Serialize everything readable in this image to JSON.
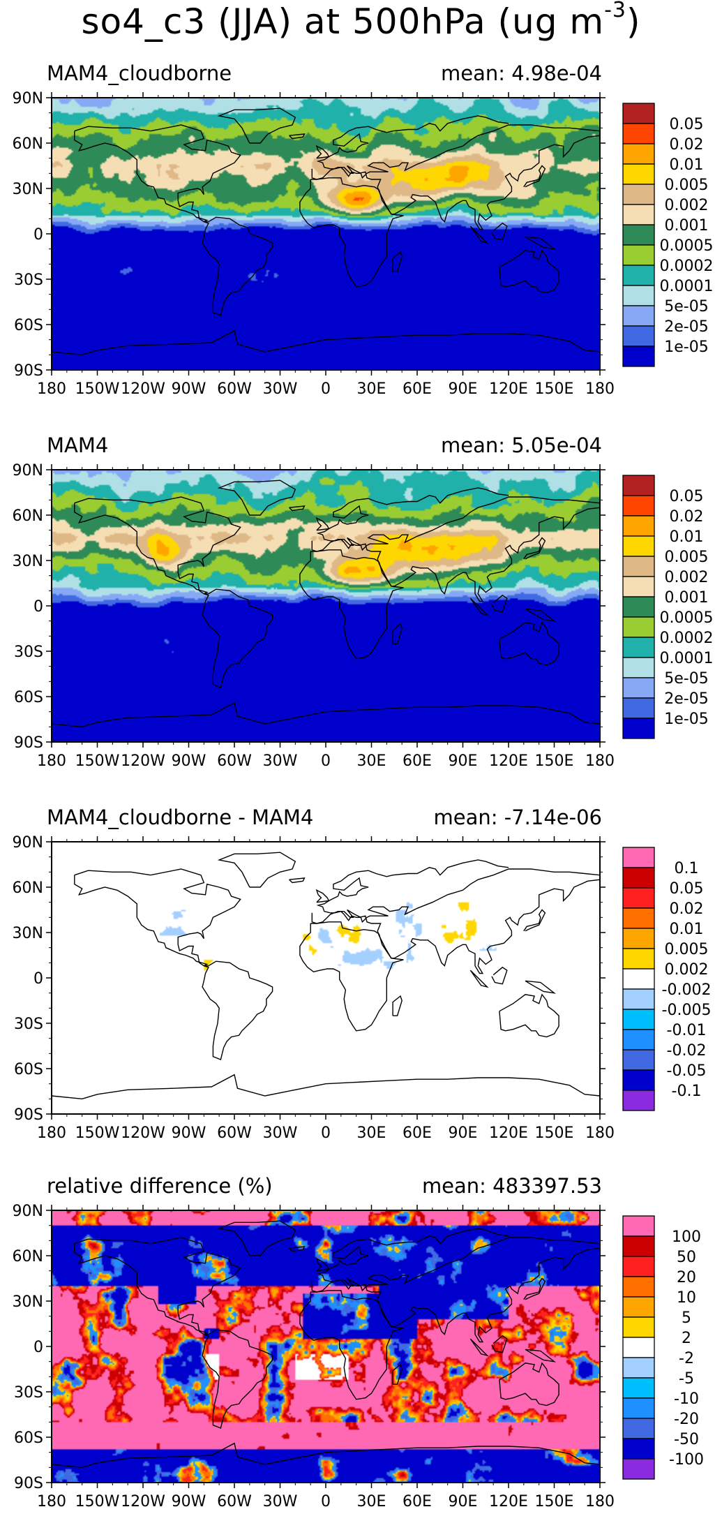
{
  "title": {
    "main": "so4_c3 (JJA) at 500hPa (ug m",
    "exponent": "-3",
    "close": ")"
  },
  "axes": {
    "x_ticks": [
      "180",
      "150W",
      "120W",
      "90W",
      "60W",
      "30W",
      "0",
      "30E",
      "60E",
      "90E",
      "120E",
      "150E",
      "180"
    ],
    "y_ticks": [
      "90N",
      "60N",
      "30N",
      "0",
      "30S",
      "60S",
      "90S"
    ]
  },
  "colors": {
    "seq": [
      "#b22222",
      "#ff4500",
      "#ffa500",
      "#ffd700",
      "#deb887",
      "#f5deb3",
      "#2e8b57",
      "#9acd32",
      "#20b2aa",
      "#b0e0e6",
      "#87a9f5",
      "#4169e1",
      "#0000cd"
    ],
    "div": [
      "#ff69b4",
      "#cc0000",
      "#ff2020",
      "#ff7000",
      "#ffa500",
      "#ffd700",
      "#ffffff",
      "#a4d0ff",
      "#00bfff",
      "#1e90ff",
      "#4169e1",
      "#0000cd",
      "#8a2be2"
    ]
  },
  "chart_data": [
    {
      "type": "heatmap",
      "label": "MAM4_cloudborne",
      "mean": "mean: 4.98e-04",
      "colorbar_labels": [
        "0.05",
        "0.02",
        "0.01",
        "0.005",
        "0.002",
        "0.001",
        "0.0005",
        "0.0002",
        "0.0001",
        "5e-05",
        "2e-05",
        "1e-05"
      ],
      "xlim": [
        -180,
        180
      ],
      "ylim": [
        -90,
        90
      ]
    },
    {
      "type": "heatmap",
      "label": "MAM4",
      "mean": "mean: 5.05e-04",
      "colorbar_labels": [
        "0.05",
        "0.02",
        "0.01",
        "0.005",
        "0.002",
        "0.001",
        "0.0005",
        "0.0002",
        "0.0001",
        "5e-05",
        "2e-05",
        "1e-05"
      ],
      "xlim": [
        -180,
        180
      ],
      "ylim": [
        -90,
        90
      ]
    },
    {
      "type": "heatmap",
      "label": "MAM4_cloudborne - MAM4",
      "mean": "mean: -7.14e-06",
      "colorbar_labels": [
        "0.1",
        "0.05",
        "0.02",
        "0.01",
        "0.005",
        "0.002",
        "-0.002",
        "-0.005",
        "-0.01",
        "-0.02",
        "-0.05",
        "-0.1"
      ],
      "xlim": [
        -180,
        180
      ],
      "ylim": [
        -90,
        90
      ]
    },
    {
      "type": "heatmap",
      "label": "relative difference (%)",
      "mean": "mean: 483397.53",
      "colorbar_labels": [
        "100",
        "50",
        "20",
        "10",
        "5",
        "2",
        "-2",
        "-5",
        "-10",
        "-20",
        "-50",
        "-100"
      ],
      "xlim": [
        -180,
        180
      ],
      "ylim": [
        -90,
        90
      ]
    }
  ]
}
